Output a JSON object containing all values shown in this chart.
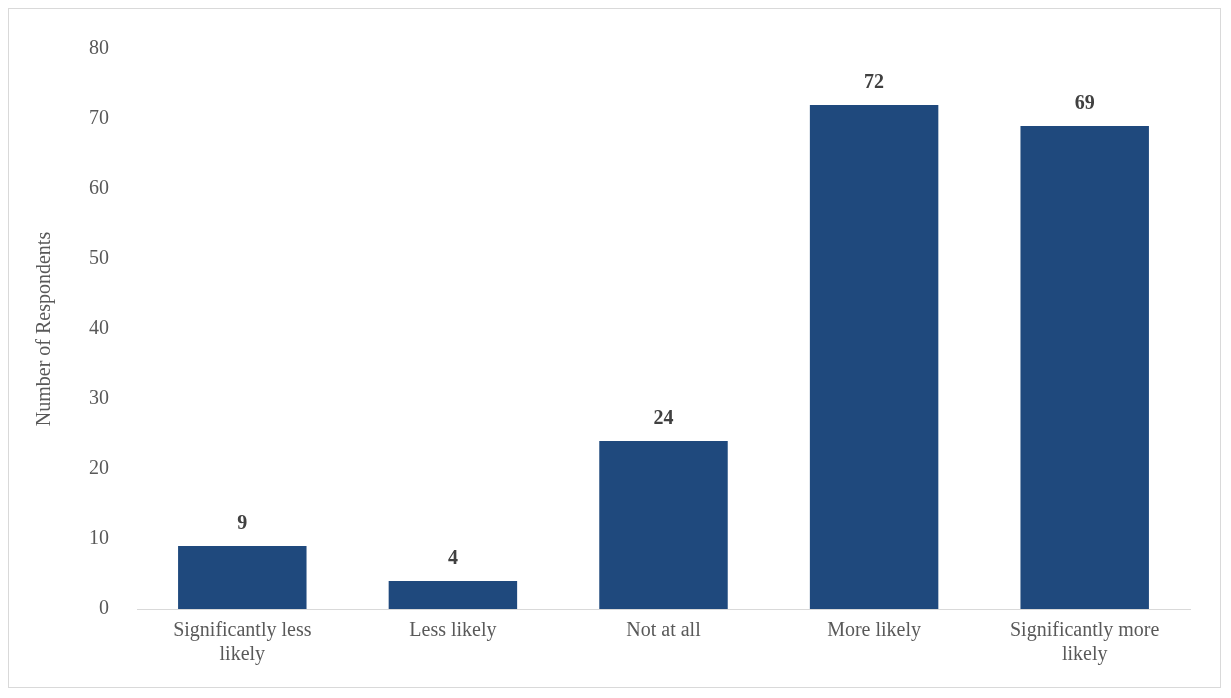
{
  "chart_data": {
    "type": "bar",
    "ylabel": "Number of Respondents",
    "categories": [
      "Significantly less likely",
      "Less likely",
      "Not at all",
      "More likely",
      "Significantly more likely"
    ],
    "values": [
      9,
      4,
      24,
      72,
      69
    ],
    "color": "#1f497d",
    "ylim": [
      0,
      80
    ],
    "yticks": [
      0,
      10,
      20,
      30,
      40,
      50,
      60,
      70,
      80
    ],
    "grid": false,
    "data_labels": true
  }
}
